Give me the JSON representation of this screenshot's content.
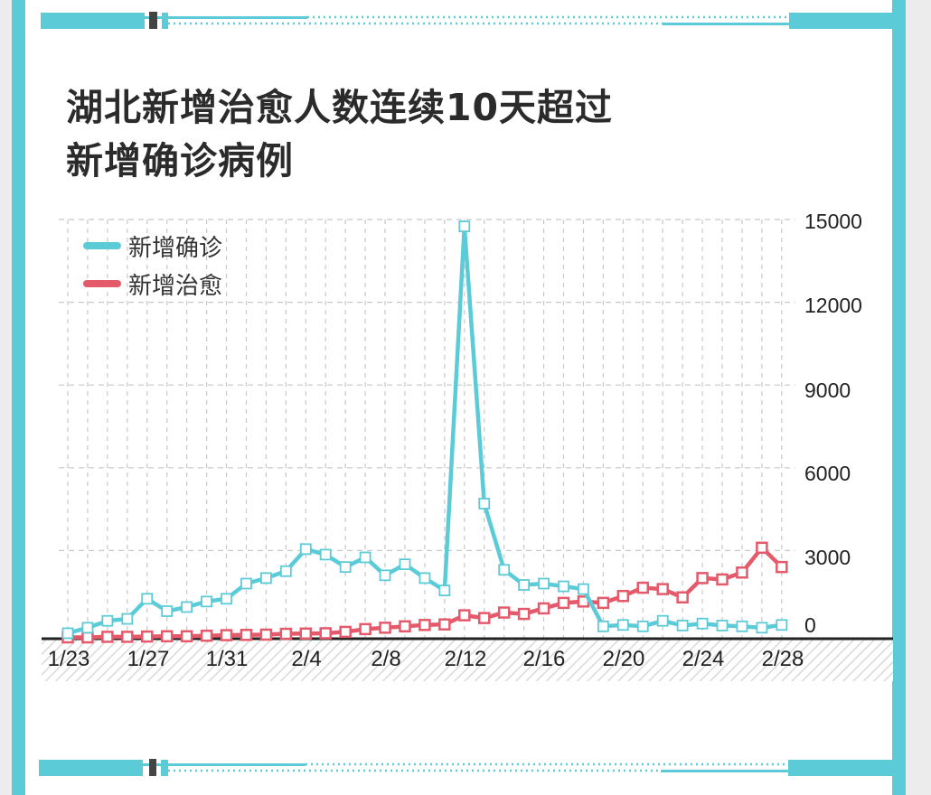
{
  "title": {
    "line1": "湖北新增治愈人数连续10天超过",
    "line2": "新增确诊病例"
  },
  "legend": [
    {
      "label": "新增确诊",
      "color": "#5ccbd8"
    },
    {
      "label": "新增治愈",
      "color": "#e55a6b"
    }
  ],
  "y_ticks": [
    "15000",
    "12000",
    "9000",
    "6000",
    "3000",
    "0"
  ],
  "x_ticks": [
    "1/23",
    "1/27",
    "1/31",
    "2/4",
    "2/8",
    "2/12",
    "2/16",
    "2/20",
    "2/24",
    "2/28"
  ],
  "colors": {
    "accent": "#5ccbd8",
    "confirmed": "#5ccbd8",
    "cured": "#e55a6b",
    "axis": "#222222",
    "grid": "#c8c8c8"
  },
  "chart_data": {
    "type": "line",
    "title": "湖北新增治愈人数连续10天超过新增确诊病例",
    "xlabel": "",
    "ylabel": "",
    "ylim": [
      0,
      15000
    ],
    "y_axis_position": "right",
    "grid": true,
    "legend_position": "top-left",
    "x": [
      "1/23",
      "1/24",
      "1/25",
      "1/26",
      "1/27",
      "1/28",
      "1/29",
      "1/30",
      "1/31",
      "2/1",
      "2/2",
      "2/3",
      "2/4",
      "2/5",
      "2/6",
      "2/7",
      "2/8",
      "2/9",
      "2/10",
      "2/11",
      "2/12",
      "2/13",
      "2/14",
      "2/15",
      "2/16",
      "2/17",
      "2/18",
      "2/19",
      "2/20",
      "2/21",
      "2/22",
      "2/23",
      "2/24",
      "2/25",
      "2/26",
      "2/27",
      "2/28"
    ],
    "series": [
      {
        "name": "新增确诊",
        "color": "#5ccbd8",
        "values": [
          100,
          300,
          550,
          620,
          1350,
          900,
          1050,
          1250,
          1350,
          1900,
          2100,
          2350,
          3150,
          2950,
          2500,
          2850,
          2200,
          2600,
          2100,
          1650,
          14850,
          4800,
          2400,
          1850,
          1900,
          1800,
          1700,
          350,
          400,
          350,
          550,
          380,
          450,
          380,
          350,
          300,
          400
        ]
      },
      {
        "name": "新增治愈",
        "color": "#e55a6b",
        "values": [
          -50,
          -50,
          -30,
          -30,
          -20,
          -10,
          -10,
          10,
          30,
          40,
          50,
          80,
          90,
          100,
          150,
          250,
          300,
          350,
          400,
          420,
          750,
          650,
          850,
          800,
          1000,
          1200,
          1250,
          1200,
          1450,
          1750,
          1700,
          1400,
          2100,
          2050,
          2300,
          3200,
          2500
        ]
      }
    ]
  }
}
